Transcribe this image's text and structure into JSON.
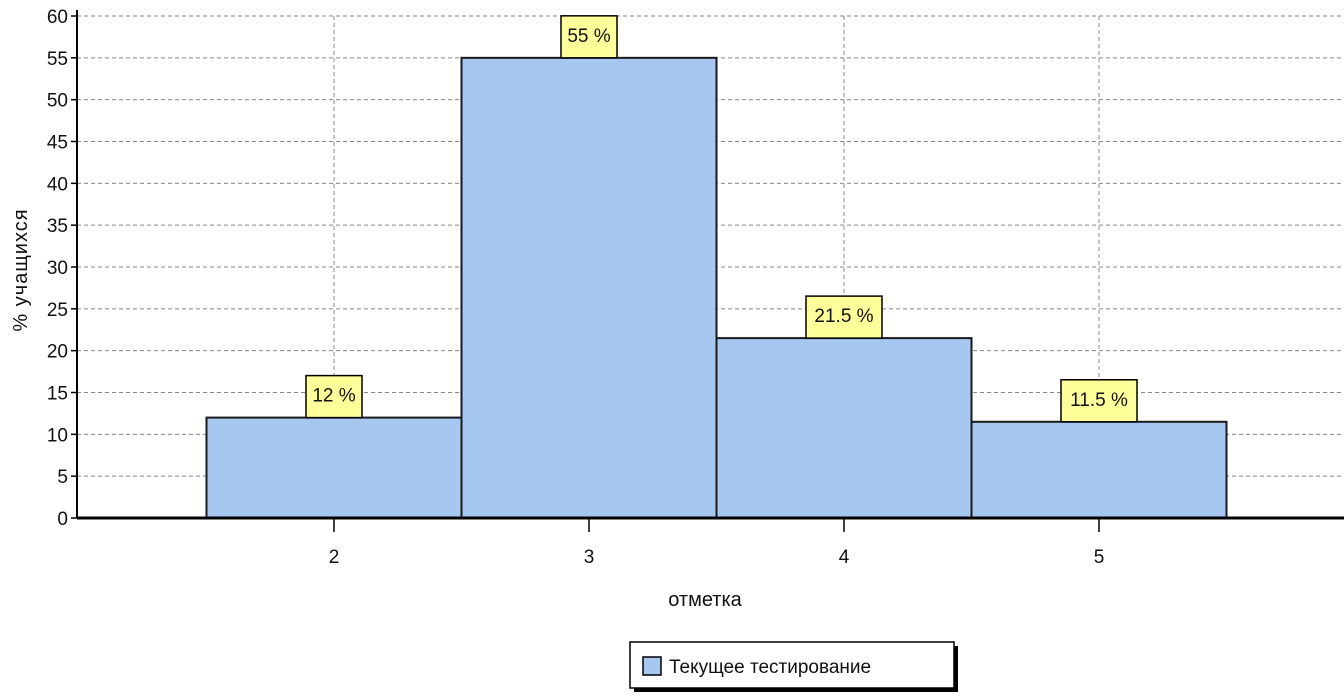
{
  "chart_data": {
    "type": "bar",
    "categories": [
      "2",
      "3",
      "4",
      "5"
    ],
    "series": [
      {
        "name": "Текущее тестирование",
        "values": [
          12,
          55,
          21.5,
          11.5
        ],
        "labels": [
          "12 %",
          "55 %",
          "21.5 %",
          "11.5 %"
        ],
        "color": "#a6c8f0"
      }
    ],
    "xlabel": "отметка",
    "ylabel": "% учащихся",
    "ylim": [
      0,
      60
    ],
    "yticks": [
      "0",
      "5",
      "10",
      "15",
      "20",
      "25",
      "30",
      "35",
      "40",
      "45",
      "50",
      "55",
      "60"
    ],
    "grid": true,
    "legend_position": "bottom"
  },
  "colors": {
    "bar_fill": "#a6c8f0",
    "bar_stroke": "#1a1a1a",
    "label_box_fill": "#ffff99",
    "grid": "#888888"
  }
}
